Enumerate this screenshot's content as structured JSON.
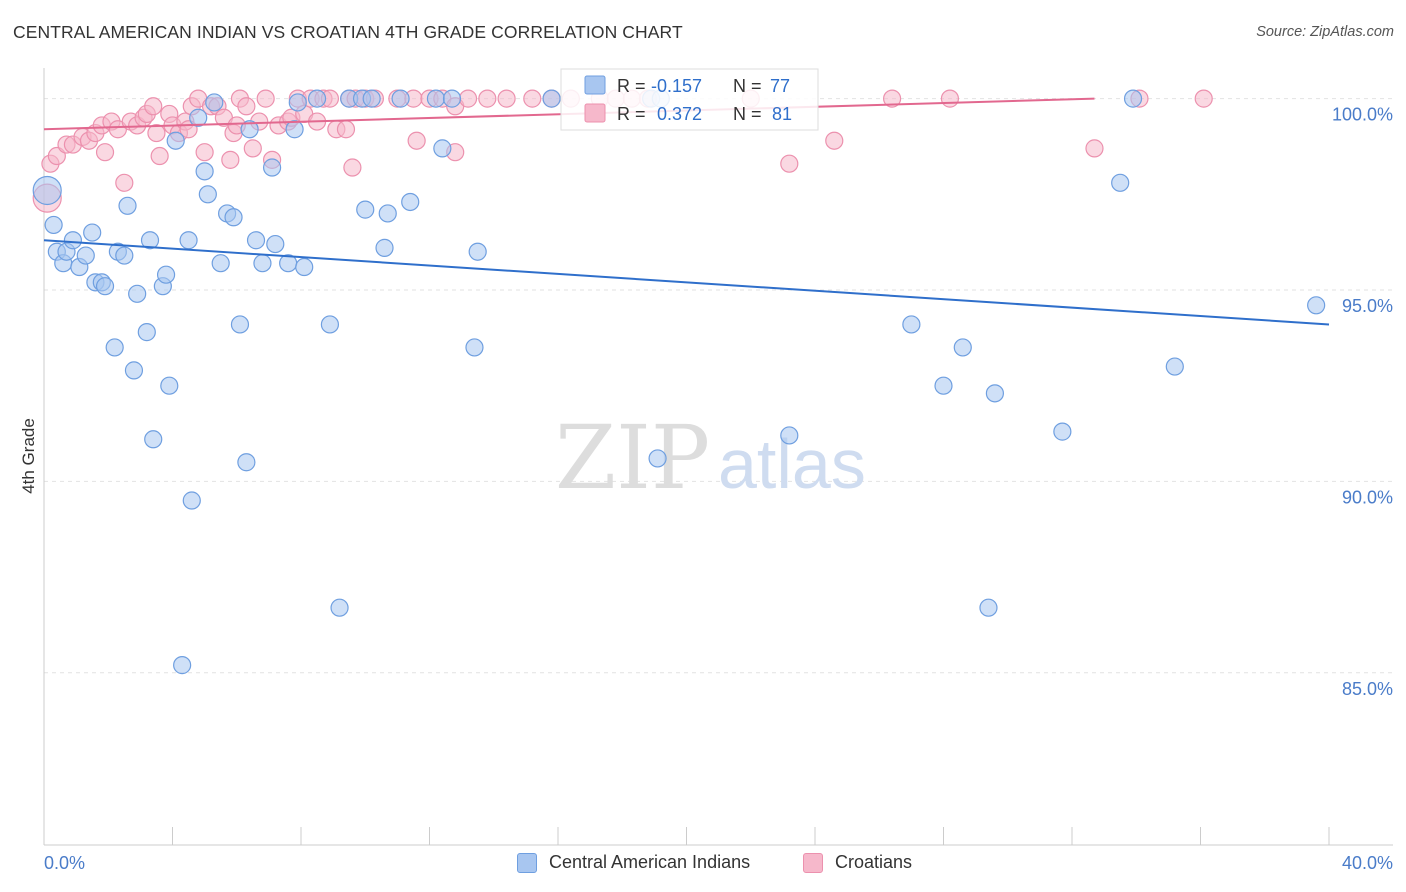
{
  "title": "CENTRAL AMERICAN INDIAN VS CROATIAN 4TH GRADE CORRELATION CHART",
  "source": "Source: ZipAtlas.com",
  "watermark": {
    "zip": "ZIP",
    "atlas": "atlas"
  },
  "colors": {
    "blue_fill": "#a8c6f0",
    "blue_stroke": "#6f9fe0",
    "blue_line": "#2f6fcb",
    "pink_fill": "#f6b8cb",
    "pink_stroke": "#ec91ae",
    "pink_line": "#e2688f",
    "axis_text": "#4a7cc9",
    "grid": "#e2e2e2"
  },
  "stats": {
    "series1": {
      "r_label": "R = ",
      "r_value": "-0.157",
      "n_label": "N = ",
      "n_value": "77"
    },
    "series2": {
      "r_label": "R = ",
      "r_value": "0.372",
      "n_label": "N = ",
      "n_value": "81"
    }
  },
  "chart_data": {
    "type": "scatter",
    "title": "CENTRAL AMERICAN INDIAN VS CROATIAN 4TH GRADE CORRELATION CHART",
    "xlabel": "",
    "ylabel": "4th Grade",
    "xlim": [
      0,
      40
    ],
    "ylim": [
      80.5,
      100.8
    ],
    "x_tick_labels": [
      "0.0%",
      "40.0%"
    ],
    "y_ticks": [
      100,
      95,
      90,
      85
    ],
    "y_tick_labels": [
      "100.0%",
      "95.0%",
      "90.0%",
      "85.0%"
    ],
    "grid": true,
    "legend_position": "bottom",
    "series": [
      {
        "name": "Central American Indians",
        "color": "#a8c6f0",
        "trend": {
          "x": [
            0,
            40
          ],
          "y": [
            96.3,
            94.1
          ]
        },
        "points": [
          [
            0.1,
            97.6
          ],
          [
            0.3,
            96.7
          ],
          [
            0.4,
            96.0
          ],
          [
            0.6,
            95.7
          ],
          [
            0.7,
            96.0
          ],
          [
            0.9,
            96.3
          ],
          [
            1.1,
            95.6
          ],
          [
            1.3,
            95.9
          ],
          [
            1.5,
            96.5
          ],
          [
            1.6,
            95.2
          ],
          [
            1.8,
            95.2
          ],
          [
            1.9,
            95.1
          ],
          [
            2.2,
            93.5
          ],
          [
            2.3,
            96.0
          ],
          [
            2.5,
            95.9
          ],
          [
            2.6,
            97.2
          ],
          [
            2.8,
            92.9
          ],
          [
            2.9,
            94.9
          ],
          [
            3.2,
            93.9
          ],
          [
            3.3,
            96.3
          ],
          [
            3.4,
            91.1
          ],
          [
            3.7,
            95.1
          ],
          [
            3.8,
            95.4
          ],
          [
            3.9,
            92.5
          ],
          [
            4.1,
            98.9
          ],
          [
            4.3,
            85.2
          ],
          [
            4.5,
            96.3
          ],
          [
            4.6,
            89.5
          ],
          [
            4.8,
            99.5
          ],
          [
            5.0,
            98.1
          ],
          [
            5.1,
            97.5
          ],
          [
            5.3,
            99.9
          ],
          [
            5.5,
            95.7
          ],
          [
            5.7,
            97.0
          ],
          [
            5.9,
            96.9
          ],
          [
            6.1,
            94.1
          ],
          [
            6.3,
            90.5
          ],
          [
            6.4,
            99.2
          ],
          [
            6.6,
            96.3
          ],
          [
            6.8,
            95.7
          ],
          [
            7.1,
            98.2
          ],
          [
            7.2,
            96.2
          ],
          [
            7.6,
            95.7
          ],
          [
            7.8,
            99.2
          ],
          [
            7.9,
            99.9
          ],
          [
            8.1,
            95.6
          ],
          [
            8.5,
            100.0
          ],
          [
            8.9,
            94.1
          ],
          [
            9.2,
            86.7
          ],
          [
            9.5,
            100.0
          ],
          [
            9.9,
            100.0
          ],
          [
            10.0,
            97.1
          ],
          [
            10.2,
            100.0
          ],
          [
            10.6,
            96.1
          ],
          [
            10.7,
            97.0
          ],
          [
            11.1,
            100.0
          ],
          [
            11.4,
            97.3
          ],
          [
            12.2,
            100.0
          ],
          [
            12.4,
            98.7
          ],
          [
            12.7,
            100.0
          ],
          [
            13.4,
            93.5
          ],
          [
            13.5,
            96.0
          ],
          [
            15.8,
            100.0
          ],
          [
            18.9,
            100.0
          ],
          [
            19.2,
            100.0
          ],
          [
            19.1,
            90.6
          ],
          [
            23.2,
            91.2
          ],
          [
            27.0,
            94.1
          ],
          [
            28.0,
            92.5
          ],
          [
            28.6,
            93.5
          ],
          [
            29.4,
            86.7
          ],
          [
            29.6,
            92.3
          ],
          [
            31.7,
            91.3
          ],
          [
            33.5,
            97.8
          ],
          [
            33.9,
            100.0
          ],
          [
            35.2,
            93.0
          ],
          [
            39.6,
            94.6
          ]
        ]
      },
      {
        "name": "Croatians",
        "color": "#f6b8cb",
        "trend": {
          "x": [
            0,
            32.7
          ],
          "y": [
            99.2,
            100.0
          ]
        },
        "points": [
          [
            0.1,
            97.4
          ],
          [
            0.2,
            98.3
          ],
          [
            0.4,
            98.5
          ],
          [
            0.7,
            98.8
          ],
          [
            0.9,
            98.8
          ],
          [
            1.2,
            99.0
          ],
          [
            1.4,
            98.9
          ],
          [
            1.6,
            99.1
          ],
          [
            1.8,
            99.3
          ],
          [
            1.9,
            98.6
          ],
          [
            2.1,
            99.4
          ],
          [
            2.3,
            99.2
          ],
          [
            2.5,
            97.8
          ],
          [
            2.7,
            99.4
          ],
          [
            2.9,
            99.3
          ],
          [
            3.1,
            99.5
          ],
          [
            3.2,
            99.6
          ],
          [
            3.4,
            99.8
          ],
          [
            3.5,
            99.1
          ],
          [
            3.6,
            98.5
          ],
          [
            3.9,
            99.6
          ],
          [
            4.0,
            99.3
          ],
          [
            4.2,
            99.1
          ],
          [
            4.4,
            99.4
          ],
          [
            4.5,
            99.2
          ],
          [
            4.6,
            99.8
          ],
          [
            4.8,
            100.0
          ],
          [
            5.0,
            98.6
          ],
          [
            5.2,
            99.8
          ],
          [
            5.4,
            99.8
          ],
          [
            5.6,
            99.5
          ],
          [
            5.8,
            98.4
          ],
          [
            5.9,
            99.1
          ],
          [
            6.0,
            99.3
          ],
          [
            6.1,
            100.0
          ],
          [
            6.3,
            99.8
          ],
          [
            6.5,
            98.7
          ],
          [
            6.7,
            99.4
          ],
          [
            6.9,
            100.0
          ],
          [
            7.1,
            98.4
          ],
          [
            7.3,
            99.3
          ],
          [
            7.6,
            99.4
          ],
          [
            7.7,
            99.5
          ],
          [
            7.9,
            100.0
          ],
          [
            8.1,
            99.6
          ],
          [
            8.3,
            100.0
          ],
          [
            8.5,
            99.4
          ],
          [
            8.7,
            100.0
          ],
          [
            8.9,
            100.0
          ],
          [
            9.1,
            99.2
          ],
          [
            9.4,
            99.2
          ],
          [
            9.5,
            100.0
          ],
          [
            9.7,
            100.0
          ],
          [
            9.6,
            98.2
          ],
          [
            10.0,
            100.0
          ],
          [
            10.3,
            100.0
          ],
          [
            11.0,
            100.0
          ],
          [
            11.5,
            100.0
          ],
          [
            11.6,
            98.9
          ],
          [
            12.0,
            100.0
          ],
          [
            12.4,
            100.0
          ],
          [
            12.8,
            98.6
          ],
          [
            12.8,
            99.8
          ],
          [
            13.2,
            100.0
          ],
          [
            13.8,
            100.0
          ],
          [
            14.4,
            100.0
          ],
          [
            15.2,
            100.0
          ],
          [
            15.8,
            100.0
          ],
          [
            16.4,
            100.0
          ],
          [
            17.3,
            100.0
          ],
          [
            17.8,
            100.0
          ],
          [
            18.3,
            100.0
          ],
          [
            18.8,
            100.0
          ],
          [
            22.0,
            100.0
          ],
          [
            23.2,
            98.3
          ],
          [
            24.6,
            98.9
          ],
          [
            26.4,
            100.0
          ],
          [
            28.2,
            100.0
          ],
          [
            32.7,
            98.7
          ],
          [
            34.1,
            100.0
          ],
          [
            36.1,
            100.0
          ]
        ]
      }
    ]
  }
}
